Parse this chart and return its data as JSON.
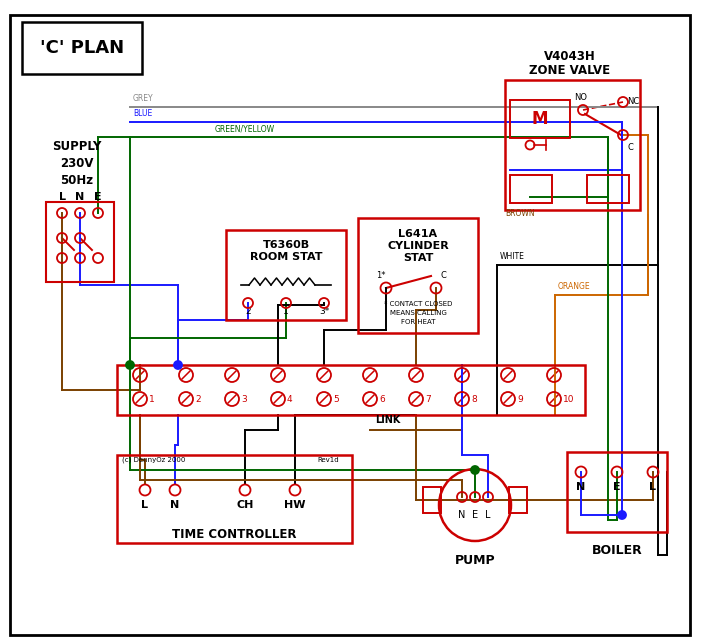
{
  "bg_color": "#ffffff",
  "red": "#cc0000",
  "blue": "#1a1aff",
  "green": "#006600",
  "brown": "#7a4000",
  "grey": "#888888",
  "orange": "#cc6600",
  "black": "#000000",
  "title": "'C' PLAN",
  "zone_valve_title1": "V4043H",
  "zone_valve_title2": "ZONE VALVE",
  "room_stat_title1": "T6360B",
  "room_stat_title2": "ROOM STAT",
  "cyl_stat_title1": "L641A",
  "cyl_stat_title2": "CYLINDER",
  "cyl_stat_title3": "STAT",
  "supply_text": "SUPPLY\n230V\n50Hz",
  "tc_text": "TIME CONTROLLER",
  "pump_text": "PUMP",
  "boiler_text": "BOILER",
  "link_text": "LINK",
  "contact_note": "* CONTACT CLOSED\nMEANS CALLING\nFOR HEAT",
  "copyright": "(c) DennyOz 2000",
  "rev": "Rev1d"
}
